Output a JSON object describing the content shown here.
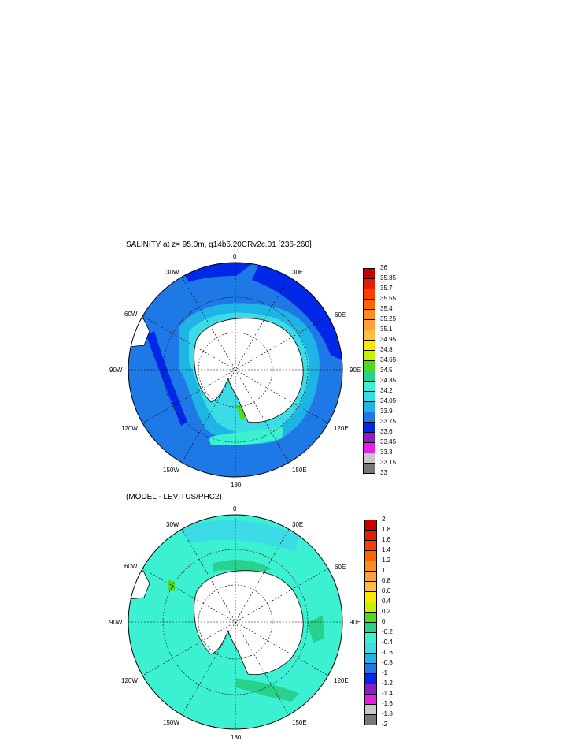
{
  "panels": [
    {
      "title": "SALINITY at z=  95.0m, g14b6.20CRv2c.01 [236-260]",
      "lon_labels": [
        "0",
        "30E",
        "60E",
        "90E",
        "120E",
        "150E",
        "180",
        "150W",
        "120W",
        "90W",
        "60W",
        "30W"
      ],
      "colorbar": {
        "labels": [
          "36",
          "35.85",
          "35.7",
          "35.55",
          "35.4",
          "35.25",
          "35.1",
          "34.95",
          "34.8",
          "34.65",
          "34.5",
          "34.35",
          "34.2",
          "34.05",
          "33.9",
          "33.75",
          "33.6",
          "33.45",
          "33.3",
          "33.15",
          "33"
        ],
        "colors": [
          "#c80000",
          "#e61e00",
          "#ff3c00",
          "#ff6400",
          "#ff8c1e",
          "#ffa03c",
          "#ffbe3c",
          "#ffe600",
          "#c8f000",
          "#50dc1e",
          "#28d28c",
          "#3cf0d2",
          "#3cdce6",
          "#1eb4e6",
          "#1e78e6",
          "#0028e6",
          "#8c1ec8",
          "#e61ee6",
          "#c8c8c8",
          "#787878"
        ]
      }
    },
    {
      "title": "(MODEL - LEVITUS/PHC2)",
      "lon_labels": [
        "0",
        "30E",
        "60E",
        "90E",
        "120E",
        "150E",
        "180",
        "150W",
        "120W",
        "90W",
        "60W",
        "30W"
      ],
      "colorbar": {
        "labels": [
          "2",
          "1.8",
          "1.6",
          "1.4",
          "1.2",
          "1",
          "0.8",
          "0.6",
          "0.4",
          "0.2",
          "0",
          "-0.2",
          "-0.4",
          "-0.6",
          "-0.8",
          "-1",
          "-1.2",
          "-1.4",
          "-1.6",
          "-1.8",
          "-2"
        ],
        "colors": [
          "#c80000",
          "#e61e00",
          "#ff3c00",
          "#ff6400",
          "#ff8c1e",
          "#ffa03c",
          "#ffbe3c",
          "#ffe600",
          "#c8f000",
          "#50dc1e",
          "#28d28c",
          "#3cf0d2",
          "#3cdce6",
          "#1eb4e6",
          "#1e78e6",
          "#0028e6",
          "#8c1ec8",
          "#e61ee6",
          "#c8c8c8",
          "#787878"
        ]
      }
    }
  ]
}
